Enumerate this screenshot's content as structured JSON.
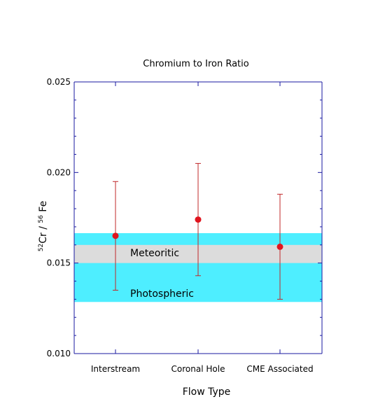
{
  "chart_data": {
    "type": "scatter",
    "title": "Chromium to Iron Ratio",
    "xlabel": "Flow Type",
    "ylabel": {
      "sup1": "52",
      "base1": "Cr / ",
      "sup2": "56",
      "base2": " Fe"
    },
    "ylim": [
      0.01,
      0.025
    ],
    "yticks": [
      "0.025",
      "0.020",
      "0.015",
      "0.010"
    ],
    "categories": [
      "Interstream",
      "Coronal Hole",
      "CME Associated"
    ],
    "series": [
      {
        "values": [
          0.0165,
          0.0174,
          0.0159
        ],
        "error_low": [
          0.0135,
          0.0143,
          0.013
        ],
        "error_high": [
          0.0195,
          0.0205,
          0.0188
        ]
      }
    ],
    "bands": [
      {
        "label": "Photospheric",
        "range": [
          0.01285,
          0.01665
        ]
      },
      {
        "label": "Meteoritic",
        "range": [
          0.015,
          0.016
        ]
      }
    ],
    "colors": {
      "photospheric": "#4eeeff",
      "meteoritic": "#dcdcdc",
      "points": "#e0141e",
      "errorbars": "#c0282a",
      "axes": "#1a1aa0"
    },
    "grid": false
  }
}
